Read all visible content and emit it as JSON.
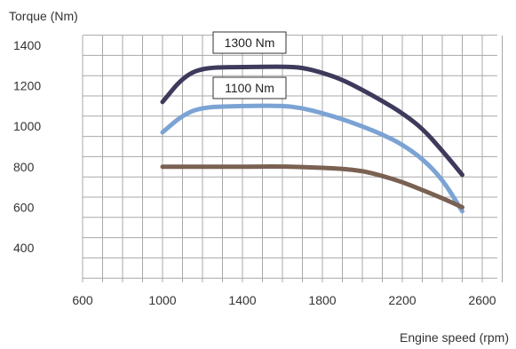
{
  "chart_data": {
    "type": "line",
    "title": "",
    "ylabel": "Torque (Nm)",
    "xlabel": "Engine speed (rpm)",
    "xlim": [
      600,
      2700
    ],
    "ylim": [
      200,
      1450
    ],
    "x_ticks": [
      600,
      1000,
      1400,
      1800,
      2200,
      2600
    ],
    "y_ticks": [
      400,
      600,
      800,
      1000,
      1200,
      1400
    ],
    "grid": true,
    "legend": "none",
    "series": [
      {
        "color": "#3d3a5c",
        "points": [
          [
            1000,
            1120
          ],
          [
            1100,
            1240
          ],
          [
            1200,
            1290
          ],
          [
            1400,
            1292
          ],
          [
            1600,
            1295
          ],
          [
            1700,
            1290
          ],
          [
            1800,
            1265
          ],
          [
            1900,
            1230
          ],
          [
            2000,
            1180
          ],
          [
            2100,
            1125
          ],
          [
            2200,
            1065
          ],
          [
            2300,
            990
          ],
          [
            2400,
            880
          ],
          [
            2500,
            760
          ]
        ]
      },
      {
        "color": "#7ba3d4",
        "points": [
          [
            1000,
            970
          ],
          [
            1100,
            1055
          ],
          [
            1200,
            1095
          ],
          [
            1400,
            1100
          ],
          [
            1600,
            1102
          ],
          [
            1700,
            1090
          ],
          [
            1800,
            1065
          ],
          [
            1900,
            1035
          ],
          [
            2000,
            1000
          ],
          [
            2100,
            960
          ],
          [
            2200,
            910
          ],
          [
            2300,
            840
          ],
          [
            2400,
            740
          ],
          [
            2500,
            580
          ]
        ]
      },
      {
        "color": "#7a6152",
        "points": [
          [
            1000,
            800
          ],
          [
            1200,
            800
          ],
          [
            1400,
            800
          ],
          [
            1600,
            802
          ],
          [
            1800,
            795
          ],
          [
            1900,
            790
          ],
          [
            2000,
            780
          ],
          [
            2100,
            755
          ],
          [
            2200,
            725
          ],
          [
            2300,
            685
          ],
          [
            2400,
            645
          ],
          [
            2500,
            600
          ]
        ]
      }
    ],
    "annotations": [
      {
        "text": "1300 Nm",
        "series_index": 0
      },
      {
        "text": "1100 Nm",
        "series_index": 1
      }
    ]
  }
}
